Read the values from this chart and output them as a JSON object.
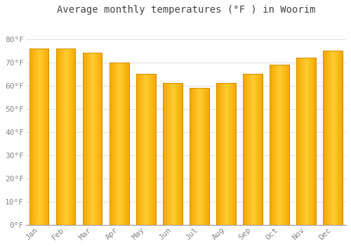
{
  "title": "Average monthly temperatures (°F ) in Woorim",
  "months": [
    "Jan",
    "Feb",
    "Mar",
    "Apr",
    "May",
    "Jun",
    "Jul",
    "Aug",
    "Sep",
    "Oct",
    "Nov",
    "Dec"
  ],
  "values": [
    76,
    76,
    74,
    70,
    65,
    61,
    59,
    61,
    65,
    69,
    72,
    75
  ],
  "bar_color_left": "#F5A800",
  "bar_color_center": "#FFCC33",
  "bar_color_right": "#F5A800",
  "background_color": "#FFFFFF",
  "grid_color": "#E0E0E0",
  "yticks": [
    0,
    10,
    20,
    30,
    40,
    50,
    60,
    70,
    80
  ],
  "ytick_labels": [
    "0°F",
    "10°F",
    "20°F",
    "30°F",
    "40°F",
    "50°F",
    "60°F",
    "70°F",
    "80°F"
  ],
  "ylim": [
    0,
    88
  ],
  "title_fontsize": 10,
  "tick_fontsize": 8,
  "font_family": "monospace",
  "bar_edge_color": "#CC8800",
  "bar_width": 0.72
}
